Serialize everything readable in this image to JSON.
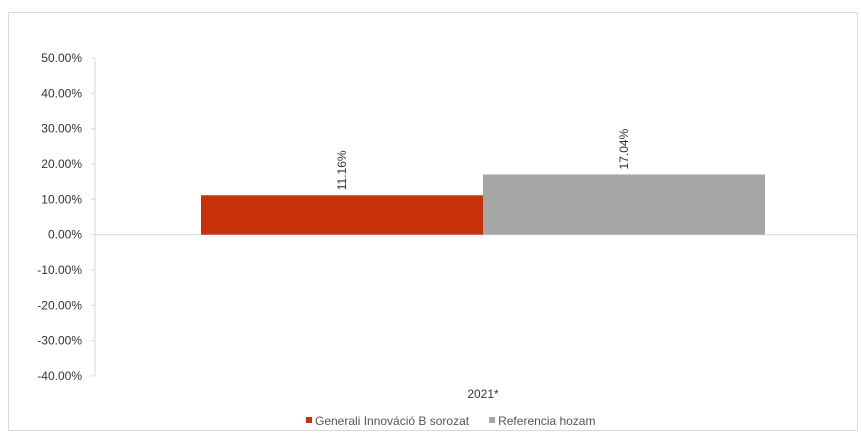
{
  "chart_data": {
    "type": "bar",
    "categories": [
      "2021*"
    ],
    "series": [
      {
        "name": "Generali Innováció B sorozat",
        "values": [
          11.16
        ],
        "color": "#c8320a",
        "label": "11.16%"
      },
      {
        "name": "Referencia hozam",
        "values": [
          17.04
        ],
        "color": "#a6a6a6",
        "label": "17.04%"
      }
    ],
    "ylim": [
      -40,
      50
    ],
    "yticks": [
      "50.00%",
      "40.00%",
      "30.00%",
      "20.00%",
      "10.00%",
      "0.00%",
      "-10.00%",
      "-20.00%",
      "-30.00%",
      "-40.00%"
    ],
    "ytick_values": [
      50,
      40,
      30,
      20,
      10,
      0,
      -10,
      -20,
      -30,
      -40
    ],
    "legend_position": "bottom",
    "grid": false
  }
}
